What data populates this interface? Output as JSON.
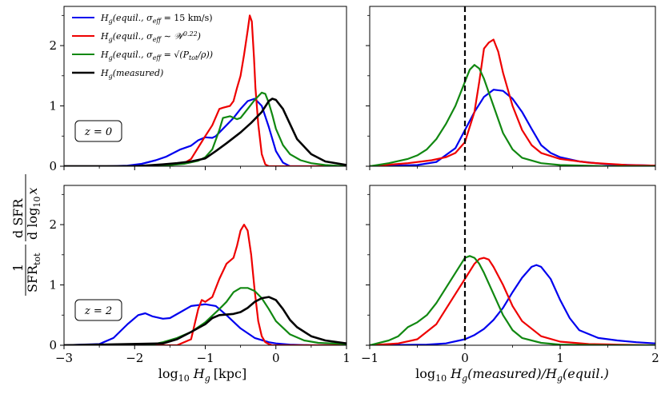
{
  "figure": {
    "ylabel": "1/SFR_tot dSFR/dlog10 x",
    "ylabel_parts": {
      "frac1_num": "1",
      "frac1_den": "SFR",
      "frac1_den_sub": "tot",
      "frac2_num": "d SFR",
      "frac2_den": "d log",
      "frac2_den_sub": "10",
      "frac2_den_var": "x"
    },
    "left_xlabel": "log10 Hg [kpc]",
    "left_xlabel_parts": {
      "a": "log",
      "sub": "10",
      "b": "H",
      "b_sub": "g",
      "c": "[kpc]"
    },
    "right_xlabel": "log10 Hg(measured)/Hg(equil.)",
    "right_xlabel_parts": {
      "a": "log",
      "sub": "10",
      "b": "H",
      "b_sub": "g",
      "c": "(measured)/",
      "d": "H",
      "d_sub": "g",
      "e": "(equil.)"
    }
  },
  "legend": [
    {
      "name": "Hg(equil., σeff = 15 km/s)",
      "color": "#0000ee",
      "key": "const"
    },
    {
      "name": "Hg(equil., σeff ∼ W^0.22)",
      "color": "#ee0000",
      "key": "w"
    },
    {
      "name": "Hg(equil., σeff = √(Ptot/ρ))",
      "color": "#118811",
      "key": "p"
    },
    {
      "name": "Hg(measured)",
      "color": "#000000",
      "key": "measured"
    }
  ],
  "legend_labels": {
    "const": {
      "pre": "H",
      "sub": "g",
      "mid": "(equil., σ",
      "sub2": "eff",
      "post": " = 15 km/s)"
    },
    "w": {
      "pre": "H",
      "sub": "g",
      "mid": "(equil., σ",
      "sub2": "eff",
      "post": " ∼ 𝒲",
      "sup": "0.22",
      "end": ")"
    },
    "p": {
      "pre": "H",
      "sub": "g",
      "mid": "(equil., σ",
      "sub2": "eff",
      "post": " = √(P",
      "sub3": "tot",
      "end": "/ρ))"
    },
    "measured": {
      "pre": "H",
      "sub": "g",
      "mid": "(measured)"
    }
  },
  "panel_labels": {
    "top": "z = 0",
    "bottom": "z = 2"
  },
  "chart_data": [
    {
      "type": "line",
      "panel": "top-left",
      "redshift": "z = 0",
      "xlim": [
        -3,
        1
      ],
      "ylim": [
        0,
        2.65
      ],
      "xticks": [
        -3,
        -2,
        -1,
        0,
        1
      ],
      "xtick_labels": [
        "−3",
        "−2",
        "−1",
        "0",
        "1"
      ],
      "yticks": [
        0,
        1,
        2
      ],
      "ytick_labels": [
        "0",
        "1",
        "2"
      ],
      "series": [
        {
          "name": "const",
          "color": "#0000ee",
          "x": [
            -3,
            -2.4,
            -2.1,
            -1.9,
            -1.7,
            -1.55,
            -1.45,
            -1.35,
            -1.2,
            -1.1,
            -1.0,
            -0.9,
            -0.85,
            -0.75,
            -0.6,
            -0.5,
            -0.4,
            -0.3,
            -0.2,
            -0.1,
            0.0,
            0.1,
            0.2,
            1
          ],
          "y": [
            0,
            0,
            0.01,
            0.04,
            0.1,
            0.16,
            0.22,
            0.28,
            0.34,
            0.43,
            0.48,
            0.47,
            0.5,
            0.62,
            0.8,
            0.95,
            1.08,
            1.12,
            1.0,
            0.65,
            0.25,
            0.06,
            0.0,
            0
          ]
        },
        {
          "name": "w",
          "color": "#ee0000",
          "x": [
            -3,
            -1.75,
            -1.5,
            -1.3,
            -1.2,
            -1.0,
            -0.9,
            -0.8,
            -0.75,
            -0.65,
            -0.6,
            -0.55,
            -0.5,
            -0.45,
            -0.4,
            -0.37,
            -0.34,
            -0.31,
            -0.29,
            -0.25,
            -0.2,
            -0.15,
            -0.1,
            1
          ],
          "y": [
            0,
            0,
            0.02,
            0.05,
            0.12,
            0.5,
            0.68,
            0.95,
            0.97,
            1.0,
            1.08,
            1.3,
            1.5,
            1.85,
            2.25,
            2.5,
            2.4,
            1.8,
            1.3,
            0.7,
            0.2,
            0.03,
            0,
            0
          ]
        },
        {
          "name": "p",
          "color": "#118811",
          "x": [
            -3,
            -1.8,
            -1.5,
            -1.3,
            -1.1,
            -1.0,
            -0.9,
            -0.8,
            -0.75,
            -0.65,
            -0.55,
            -0.5,
            -0.4,
            -0.3,
            -0.2,
            -0.15,
            -0.1,
            -0.05,
            0.0,
            0.1,
            0.2,
            0.35,
            0.5,
            0.7,
            1
          ],
          "y": [
            0,
            0,
            0.02,
            0.04,
            0.09,
            0.15,
            0.28,
            0.6,
            0.8,
            0.83,
            0.78,
            0.8,
            0.95,
            1.1,
            1.22,
            1.2,
            1.05,
            0.85,
            0.62,
            0.35,
            0.2,
            0.1,
            0.05,
            0.02,
            0
          ]
        },
        {
          "name": "measured",
          "color": "#000000",
          "x": [
            -3,
            -2.0,
            -1.6,
            -1.4,
            -1.2,
            -1.0,
            -0.85,
            -0.7,
            -0.5,
            -0.35,
            -0.2,
            -0.1,
            -0.05,
            0.0,
            0.1,
            0.2,
            0.3,
            0.5,
            0.7,
            1
          ],
          "y": [
            0,
            0,
            0.03,
            0.05,
            0.08,
            0.13,
            0.25,
            0.38,
            0.56,
            0.72,
            0.9,
            1.08,
            1.12,
            1.1,
            0.95,
            0.7,
            0.45,
            0.2,
            0.08,
            0.02
          ]
        }
      ]
    },
    {
      "type": "line",
      "panel": "top-right",
      "redshift": "z = 0",
      "xlim": [
        -1,
        2
      ],
      "ylim": [
        0,
        2.65
      ],
      "xticks": [
        -1,
        0,
        1,
        2
      ],
      "vline_x": 0,
      "series": [
        {
          "name": "const",
          "color": "#0000ee",
          "x": [
            -1,
            -0.5,
            -0.3,
            -0.1,
            0.0,
            0.1,
            0.2,
            0.3,
            0.4,
            0.5,
            0.6,
            0.7,
            0.8,
            0.9,
            1.0,
            1.2,
            1.5,
            2.0
          ],
          "y": [
            0,
            0.02,
            0.07,
            0.3,
            0.6,
            0.9,
            1.15,
            1.27,
            1.25,
            1.12,
            0.9,
            0.62,
            0.35,
            0.22,
            0.15,
            0.08,
            0.03,
            0.01
          ]
        },
        {
          "name": "w",
          "color": "#ee0000",
          "x": [
            -1,
            -0.6,
            -0.35,
            -0.2,
            -0.1,
            0.0,
            0.1,
            0.15,
            0.2,
            0.25,
            0.3,
            0.35,
            0.4,
            0.5,
            0.6,
            0.7,
            0.8,
            1.0,
            1.3,
            1.7,
            2.0
          ],
          "y": [
            0,
            0.05,
            0.1,
            0.15,
            0.22,
            0.4,
            0.9,
            1.4,
            1.95,
            2.05,
            2.1,
            1.9,
            1.55,
            1.0,
            0.6,
            0.35,
            0.22,
            0.12,
            0.06,
            0.02,
            0.01
          ]
        },
        {
          "name": "p",
          "color": "#118811",
          "x": [
            -1,
            -0.8,
            -0.6,
            -0.5,
            -0.4,
            -0.3,
            -0.2,
            -0.1,
            0.0,
            0.05,
            0.1,
            0.15,
            0.2,
            0.3,
            0.4,
            0.5,
            0.6,
            0.8,
            1.0,
            1.5,
            2.0
          ],
          "y": [
            0,
            0.05,
            0.12,
            0.18,
            0.28,
            0.45,
            0.7,
            1.0,
            1.4,
            1.6,
            1.68,
            1.62,
            1.45,
            1.0,
            0.55,
            0.28,
            0.14,
            0.05,
            0.02,
            0.0,
            0.0
          ]
        }
      ]
    },
    {
      "type": "line",
      "panel": "bottom-left",
      "redshift": "z = 2",
      "xlim": [
        -3,
        1
      ],
      "ylim": [
        0,
        2.65
      ],
      "xticks": [
        -3,
        -2,
        -1,
        0,
        1
      ],
      "xtick_labels": [
        "−3",
        "−2",
        "−1",
        "0",
        "1"
      ],
      "yticks": [
        0,
        1,
        2
      ],
      "ytick_labels": [
        "0",
        "1",
        "2"
      ],
      "series": [
        {
          "name": "const",
          "color": "#0000ee",
          "x": [
            -3,
            -2.5,
            -2.3,
            -2.1,
            -1.95,
            -1.85,
            -1.75,
            -1.6,
            -1.5,
            -1.35,
            -1.2,
            -1.0,
            -0.85,
            -0.7,
            -0.5,
            -0.3,
            -0.1,
            0.0,
            0.2,
            0.5,
            1.0
          ],
          "y": [
            0,
            0.02,
            0.12,
            0.35,
            0.5,
            0.53,
            0.48,
            0.44,
            0.45,
            0.55,
            0.65,
            0.68,
            0.65,
            0.5,
            0.28,
            0.12,
            0.05,
            0.03,
            0.01,
            0,
            0
          ]
        },
        {
          "name": "w",
          "color": "#ee0000",
          "x": [
            -3,
            -1.4,
            -1.2,
            -1.1,
            -1.05,
            -1.0,
            -0.9,
            -0.8,
            -0.7,
            -0.6,
            -0.55,
            -0.5,
            -0.45,
            -0.4,
            -0.35,
            -0.3,
            -0.25,
            -0.2,
            -0.15,
            -0.1,
            -0.05,
            1.0
          ],
          "y": [
            0,
            0,
            0.1,
            0.6,
            0.75,
            0.72,
            0.8,
            1.1,
            1.35,
            1.45,
            1.65,
            1.9,
            2.0,
            1.9,
            1.5,
            0.9,
            0.4,
            0.15,
            0.05,
            0.02,
            0,
            0
          ]
        },
        {
          "name": "p",
          "color": "#118811",
          "x": [
            -3,
            -1.8,
            -1.6,
            -1.4,
            -1.2,
            -1.0,
            -0.8,
            -0.7,
            -0.6,
            -0.5,
            -0.4,
            -0.3,
            -0.2,
            -0.1,
            0.0,
            0.2,
            0.4,
            0.6,
            1.0
          ],
          "y": [
            0,
            0,
            0.05,
            0.12,
            0.22,
            0.38,
            0.6,
            0.72,
            0.88,
            0.95,
            0.95,
            0.9,
            0.78,
            0.6,
            0.4,
            0.18,
            0.08,
            0.04,
            0.02
          ]
        },
        {
          "name": "measured",
          "color": "#000000",
          "x": [
            -3,
            -1.6,
            -1.4,
            -1.2,
            -1.0,
            -0.9,
            -0.8,
            -0.6,
            -0.5,
            -0.4,
            -0.3,
            -0.2,
            -0.1,
            0.0,
            0.1,
            0.2,
            0.3,
            0.5,
            0.7,
            1.0
          ],
          "y": [
            0,
            0.03,
            0.1,
            0.22,
            0.35,
            0.45,
            0.5,
            0.52,
            0.55,
            0.62,
            0.72,
            0.78,
            0.8,
            0.75,
            0.6,
            0.42,
            0.3,
            0.15,
            0.08,
            0.03
          ]
        }
      ]
    },
    {
      "type": "line",
      "panel": "bottom-right",
      "redshift": "z = 2",
      "xlim": [
        -1,
        2
      ],
      "ylim": [
        0,
        2.65
      ],
      "xticks": [
        -1,
        0,
        1,
        2
      ],
      "xtick_labels": [
        "−1",
        "0",
        "1",
        "2"
      ],
      "vline_x": 0,
      "series": [
        {
          "name": "const",
          "color": "#0000ee",
          "x": [
            -1,
            -0.4,
            -0.2,
            0.0,
            0.1,
            0.2,
            0.3,
            0.4,
            0.5,
            0.6,
            0.7,
            0.75,
            0.8,
            0.9,
            1.0,
            1.1,
            1.2,
            1.4,
            1.6,
            1.8,
            2.0
          ],
          "y": [
            0,
            0.01,
            0.03,
            0.1,
            0.17,
            0.27,
            0.42,
            0.62,
            0.88,
            1.12,
            1.3,
            1.33,
            1.3,
            1.1,
            0.75,
            0.45,
            0.25,
            0.12,
            0.08,
            0.05,
            0.03
          ]
        },
        {
          "name": "w",
          "color": "#ee0000",
          "x": [
            -1,
            -0.7,
            -0.5,
            -0.3,
            -0.2,
            -0.1,
            0.0,
            0.1,
            0.15,
            0.2,
            0.25,
            0.3,
            0.4,
            0.5,
            0.6,
            0.8,
            1.0,
            1.3,
            1.6,
            2.0
          ],
          "y": [
            0,
            0.03,
            0.1,
            0.35,
            0.6,
            0.85,
            1.1,
            1.35,
            1.43,
            1.45,
            1.42,
            1.3,
            1.0,
            0.65,
            0.4,
            0.15,
            0.06,
            0.02,
            0.01,
            0
          ]
        },
        {
          "name": "p",
          "color": "#118811",
          "x": [
            -1,
            -0.8,
            -0.7,
            -0.6,
            -0.5,
            -0.4,
            -0.3,
            -0.2,
            -0.1,
            0.0,
            0.05,
            0.1,
            0.15,
            0.2,
            0.3,
            0.4,
            0.5,
            0.6,
            0.8,
            1.0,
            1.5,
            2.0
          ],
          "y": [
            0,
            0.08,
            0.15,
            0.3,
            0.38,
            0.5,
            0.7,
            0.95,
            1.2,
            1.45,
            1.48,
            1.45,
            1.35,
            1.2,
            0.85,
            0.5,
            0.25,
            0.12,
            0.04,
            0.01,
            0,
            0
          ]
        }
      ]
    }
  ]
}
